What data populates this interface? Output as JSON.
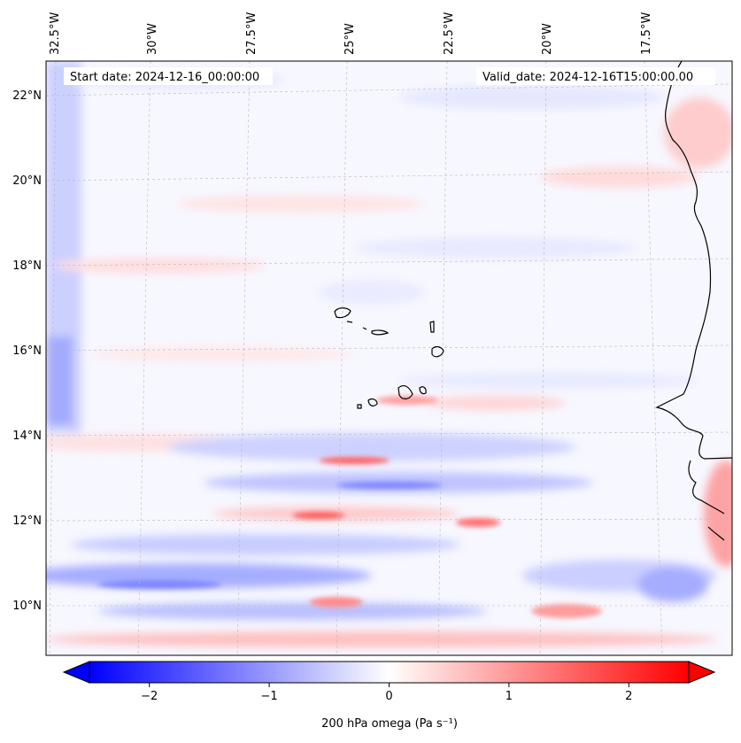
{
  "map": {
    "start_date": "Start date: 2024-12-16_00:00:00",
    "valid_date": "Valid_date: 2024-12-16T15:00:00.00",
    "longitude_labels": [
      "32.5°W",
      "30°W",
      "27.5°W",
      "25°W",
      "22.5°W",
      "20°W",
      "17.5°W"
    ],
    "latitude_labels": [
      "22°N",
      "20°N",
      "18°N",
      "16°N",
      "14°N",
      "12°N",
      "10°N"
    ],
    "extent": {
      "lon_min": -32.8,
      "lon_max": -15.9,
      "lat_min": 8.8,
      "lat_max": 22.7
    },
    "field": "200 hPa omega",
    "colormap": "bwr",
    "colors": {
      "negative": "#0000ff",
      "zero": "#ffffff",
      "positive": "#ff0000",
      "coastline": "#000000",
      "grid": "#b0b0b0"
    }
  },
  "colorbar": {
    "label": "200 hPa omega (Pa s⁻¹)",
    "ticks": [
      "−2",
      "−1",
      "0",
      "1",
      "2"
    ],
    "tick_values": [
      -2,
      -1,
      0,
      1,
      2
    ],
    "vmin": -2.5,
    "vmax": 2.5,
    "extend": "both"
  }
}
